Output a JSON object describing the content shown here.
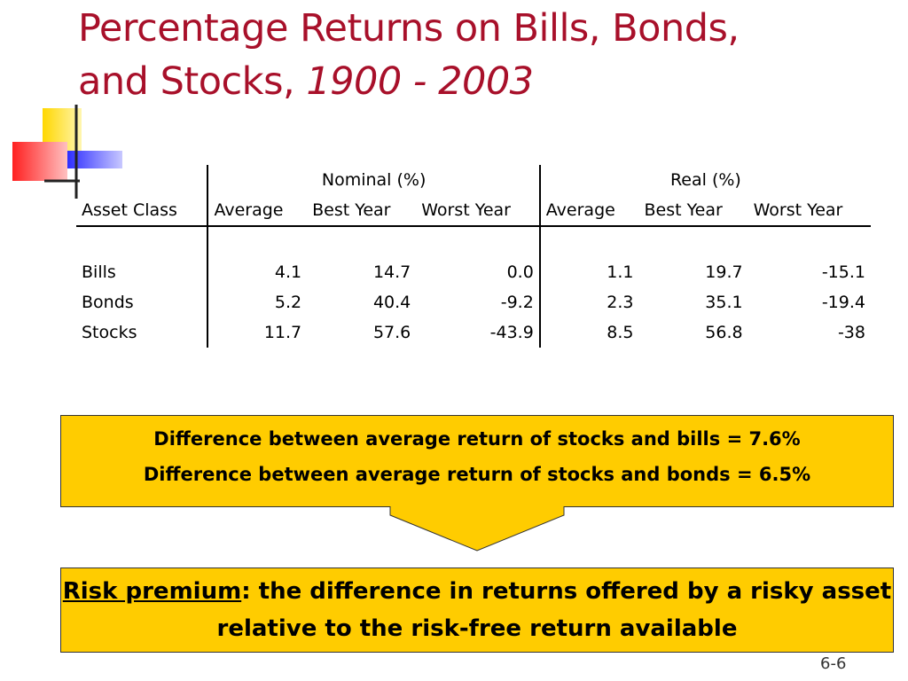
{
  "title": {
    "line1": "Percentage Returns on Bills, Bonds,",
    "line2_prefix": "and Stocks, ",
    "line2_years": "1900 - 2003"
  },
  "table": {
    "group_headers": {
      "nominal": "Nominal (%)",
      "real": "Real (%)"
    },
    "columns": [
      "Asset Class",
      "Average",
      "Best Year",
      "Worst Year",
      "Average",
      "Best Year",
      "Worst Year"
    ],
    "rows": [
      {
        "asset": "Bills",
        "nominal": {
          "average": "4.1",
          "best": "14.7",
          "worst": "0.0"
        },
        "real": {
          "average": "1.1",
          "best": "19.7",
          "worst": "-15.1"
        }
      },
      {
        "asset": "Bonds",
        "nominal": {
          "average": "5.2",
          "best": "40.4",
          "worst": "-9.2"
        },
        "real": {
          "average": "2.3",
          "best": "35.1",
          "worst": "-19.4"
        }
      },
      {
        "asset": "Stocks",
        "nominal": {
          "average": "11.7",
          "best": "57.6",
          "worst": "-43.9"
        },
        "real": {
          "average": "8.5",
          "best": "56.8",
          "worst": "-38"
        }
      }
    ]
  },
  "callout1": {
    "line1": "Difference between average return of stocks and bills = 7.6%",
    "line2": "Difference between average return of stocks and bonds = 6.5%"
  },
  "callout2": {
    "term": "Risk premium",
    "colon": ":",
    "definition": " the difference in returns offered by a risky asset relative to the risk-free return available"
  },
  "slide_number": "6-6",
  "colors": {
    "title": "#a8102a",
    "callout_fill": "#ffcc00"
  }
}
